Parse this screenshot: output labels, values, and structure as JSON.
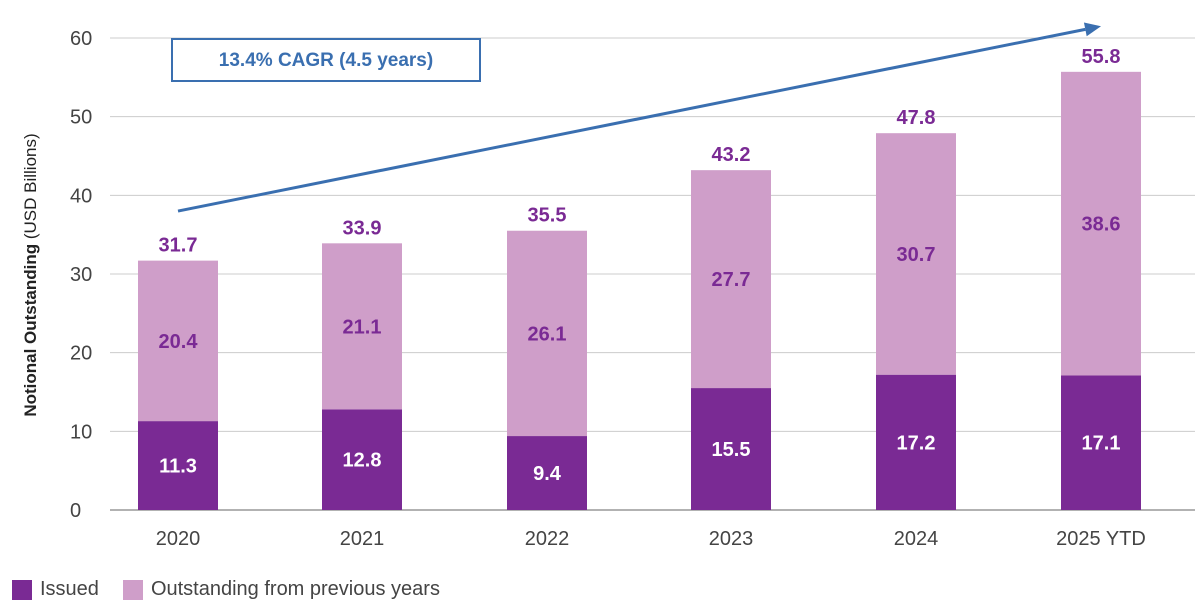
{
  "colors": {
    "issued": "#7a2a94",
    "outstanding": "#cf9ec9",
    "total_label": "#7a2a94",
    "segment_label_outstanding": "#7a2a94",
    "segment_label_issued": "#ffffff",
    "grid": "#cccccc",
    "arrow": "#3a6fb0"
  },
  "chart_data": {
    "type": "bar",
    "stacked": true,
    "categories": [
      "2020",
      "2021",
      "2022",
      "2023",
      "2024",
      "2025 YTD"
    ],
    "series": [
      {
        "name": "Issued",
        "values": [
          11.3,
          12.8,
          9.4,
          15.5,
          17.2,
          17.1
        ]
      },
      {
        "name": "Outstanding from previous years",
        "values": [
          20.4,
          21.1,
          26.1,
          27.7,
          30.7,
          38.6
        ]
      }
    ],
    "totals": [
      31.7,
      33.9,
      35.5,
      43.2,
      47.8,
      55.8
    ],
    "segment_labels": {
      "issued": [
        "11.3",
        "12.8",
        "9.4",
        "15.5",
        "17.2",
        "17.1"
      ],
      "outstanding": [
        "20.4",
        "21.1",
        "26.1",
        "27.7",
        "30.7",
        "38.6"
      ]
    },
    "total_labels": [
      "31.7",
      "33.9",
      "35.5",
      "43.2",
      "47.8",
      "55.8"
    ],
    "ylabel_bold": "Notional Outstanding",
    "ylabel_normal": " (USD Billions)",
    "ylim": [
      0,
      60
    ],
    "yticks": [
      0,
      10,
      20,
      30,
      40,
      50,
      60
    ],
    "ytick_labels": [
      "0",
      "10",
      "20",
      "30",
      "40",
      "50",
      "60"
    ],
    "grid": true,
    "annotation": {
      "text": "13.4% CAGR (4.5 years)",
      "arrow_from": {
        "category": "2020",
        "value": 38
      },
      "arrow_to": {
        "category": "2025 YTD",
        "value": 61.5
      }
    },
    "legend": {
      "position": "bottom-left",
      "items": [
        "Issued",
        "Outstanding from previous years"
      ]
    }
  }
}
